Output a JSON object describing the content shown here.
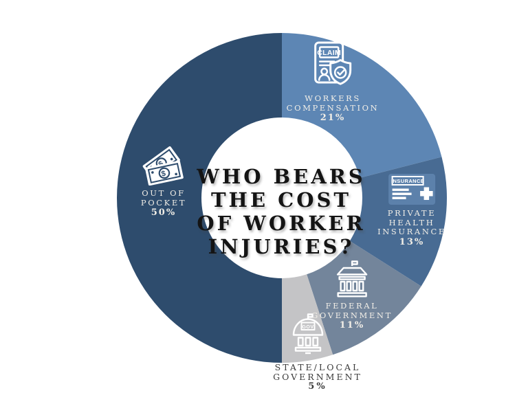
{
  "title": {
    "lines": [
      "WHO BEARS",
      "THE COST",
      "OF WORKER",
      "INJURIES?"
    ],
    "full": "WHO BEARS THE COST OF WORKER INJURIES?"
  },
  "chart_data": {
    "type": "pie",
    "subtype": "donut",
    "title": "WHO BEARS THE COST OF WORKER INJURIES?",
    "categories": [
      "Workers Compensation",
      "Private Health Insurance",
      "Federal Government",
      "State/Local Government",
      "Out of Pocket"
    ],
    "values": [
      21,
      13,
      11,
      5,
      50
    ],
    "unit": "%",
    "start_angle_deg": 0,
    "direction": "clockwise",
    "legend_position": "on-slices",
    "background": "#ffffff",
    "hole_color": "#ffffff",
    "on_slice_text_color": "#f1eee7",
    "outside_text_color": "#3b3b3b",
    "slices": [
      {
        "name": "Workers Compensation",
        "value": 21,
        "pct_label": "21%",
        "label_lines": [
          "WORKERS",
          "COMPENSATION"
        ],
        "color": "#5d86b4",
        "icon": "claim-document-icon",
        "icon_text": "CLAIM"
      },
      {
        "name": "Private Health Insurance",
        "value": 13,
        "pct_label": "13%",
        "label_lines": [
          "PRIVATE",
          "HEALTH",
          "INSURANCE"
        ],
        "color": "#486b93",
        "icon": "insurance-card-icon",
        "icon_text": "INSURANCE",
        "icon_card_color": "#5c81ab"
      },
      {
        "name": "Federal Government",
        "value": 11,
        "pct_label": "11%",
        "label_lines": [
          "FEDERAL",
          "GOVERNMENT"
        ],
        "color": "#73859b",
        "icon": "bank-building-icon",
        "icon_text": ""
      },
      {
        "name": "State/Local Government",
        "value": 5,
        "pct_label": "5%",
        "label_lines": [
          "STATE/LOCAL",
          "GOVERNMENT"
        ],
        "color": "#c4c4c6",
        "icon": "gov-dome-icon",
        "icon_text": "GOV"
      },
      {
        "name": "Out of Pocket",
        "value": 50,
        "pct_label": "50%",
        "label_lines": [
          "OUT OF",
          "POCKET"
        ],
        "color": "#2e4c6d",
        "icon": "money-bills-icon",
        "icon_text": "$"
      }
    ]
  }
}
